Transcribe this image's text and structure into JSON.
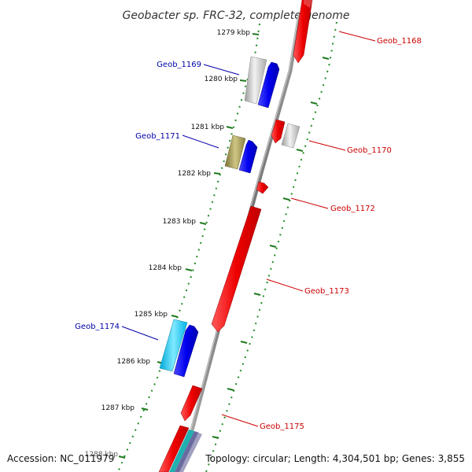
{
  "title": "Geobacter sp. FRC-32, complete genome",
  "footer": {
    "accession": "Accession: NC_011979",
    "summary": "Topology: circular; Length: 4,304,501 bp; Genes: 3,855"
  },
  "ruler": [
    "1279 kbp",
    "1280 kbp",
    "1281 kbp",
    "1282 kbp",
    "1283 kbp",
    "1284 kbp",
    "1285 kbp",
    "1286 kbp",
    "1287 kbp",
    "1288 kbp"
  ],
  "genes": {
    "geob_1168": "Geob_1168",
    "geob_1169": "Geob_1169",
    "geob_1170": "Geob_1170",
    "geob_1171": "Geob_1171",
    "geob_1172": "Geob_1172",
    "geob_1173": "Geob_1173",
    "geob_1174": "Geob_1174",
    "geob_1175": "Geob_1175"
  },
  "colors": {
    "forward_gene": "#ff0000",
    "reverse_gene": "#0000ff",
    "label_right": "#cc0000",
    "label_left": "#0000aa",
    "ruler_dots": "#228b22",
    "backbone": "#808080"
  }
}
